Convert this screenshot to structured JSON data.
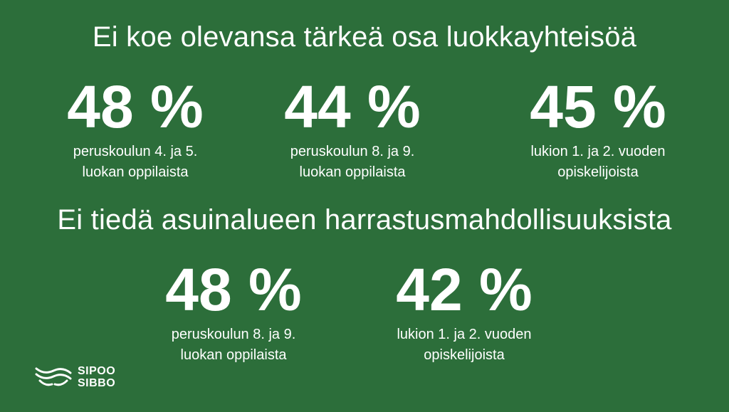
{
  "section1": {
    "heading": "Ei koe olevansa tärkeä osa luokkayhteisöä",
    "stats": [
      {
        "value": "48 %",
        "line1": "peruskoulun 4. ja 5.",
        "line2": "luokan oppilaista"
      },
      {
        "value": "44 %",
        "line1": "peruskoulun 8. ja 9.",
        "line2": "luokan oppilaista"
      },
      {
        "value": "45 %",
        "line1": "lukion 1. ja 2. vuoden",
        "line2": "opiskelijoista"
      }
    ]
  },
  "section2": {
    "heading": "Ei tiedä asuinalueen harrastusmahdollisuuksista",
    "stats": [
      {
        "value": "48 %",
        "line1": "peruskoulun 8. ja 9.",
        "line2": "luokan oppilaista"
      },
      {
        "value": "42 %",
        "line1": "lukion 1. ja 2. vuoden",
        "line2": "opiskelijoista"
      }
    ]
  },
  "logo": {
    "line1": "SIPOO",
    "line2": "SIBBO",
    "icon": "sipoo-wave-logo-icon"
  },
  "colors": {
    "background": "#2c6e3a",
    "text": "#ffffff"
  }
}
